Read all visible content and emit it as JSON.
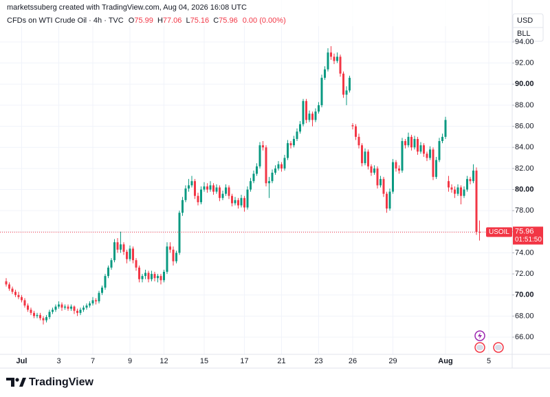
{
  "header": {
    "credit": "marketssuberg created with TradingView.com, Aug 04, 2026 16:08 UTC"
  },
  "chart_data": {
    "type": "candlestick",
    "title": "CFDs on WTI Crude Oil · 4h · TVC",
    "ohlc_labels": [
      "O",
      "H",
      "L",
      "C"
    ],
    "change_label": "0.00 (0.00%)",
    "currency": "USD",
    "unit": "BLL",
    "symbol": "USOIL",
    "countdown": "01:51:50",
    "up_color": "#089981",
    "down_color": "#f23645",
    "grid": true,
    "ylim": [
      64.37,
      97.98
    ],
    "yticks": [
      {
        "value": 66,
        "label": "66.00"
      },
      {
        "value": 68,
        "label": "68.00"
      },
      {
        "value": 70,
        "label": "70.00"
      },
      {
        "value": 72,
        "label": "72.00"
      },
      {
        "value": 74,
        "label": "74.00"
      },
      {
        "value": 76,
        "label": "76.00"
      },
      {
        "value": 78,
        "label": "78.00"
      },
      {
        "value": 80,
        "label": "80.00"
      },
      {
        "value": 82,
        "label": "82.00"
      },
      {
        "value": 84,
        "label": "84.00"
      },
      {
        "value": 86,
        "label": "86.00"
      },
      {
        "value": 88,
        "label": "88.00"
      },
      {
        "value": 90,
        "label": "90.00"
      },
      {
        "value": 92,
        "label": "92.00"
      },
      {
        "value": 94,
        "label": "94.00"
      }
    ],
    "categories": [
      null,
      null,
      null,
      null,
      null,
      "Jul",
      null,
      null,
      null,
      null,
      null,
      null,
      null,
      null,
      null,
      null,
      null,
      "3",
      null,
      null,
      null,
      null,
      null,
      null,
      null,
      null,
      null,
      null,
      "7",
      null,
      null,
      null,
      null,
      null,
      null,
      null,
      null,
      null,
      null,
      null,
      "9",
      null,
      null,
      null,
      null,
      null,
      null,
      null,
      null,
      null,
      null,
      "12",
      null,
      null,
      null,
      null,
      null,
      null,
      null,
      null,
      null,
      null,
      null,
      null,
      "15",
      null,
      null,
      null,
      null,
      null,
      null,
      null,
      null,
      null,
      null,
      null,
      null,
      "17",
      null,
      null,
      null,
      null,
      null,
      null,
      null,
      null,
      null,
      null,
      null,
      "21",
      null,
      null,
      null,
      null,
      null,
      null,
      null,
      null,
      null,
      null,
      null,
      "23",
      null,
      null,
      null,
      null,
      null,
      null,
      null,
      null,
      null,
      null,
      "26",
      null,
      null,
      null,
      null,
      null,
      null,
      null,
      null,
      null,
      null,
      null,
      null,
      "29",
      null,
      null,
      null,
      null,
      null,
      null,
      null,
      null,
      null,
      null,
      null,
      null,
      null,
      null,
      null,
      null,
      "Aug",
      null,
      null,
      null,
      null,
      null,
      null,
      null,
      null,
      null,
      null,
      null,
      null,
      null,
      "5"
    ],
    "ohlc": [
      [
        71.3,
        71.6,
        70.8,
        71.0
      ],
      [
        71.0,
        71.2,
        70.4,
        70.6
      ],
      [
        70.6,
        70.8,
        70.1,
        70.3
      ],
      [
        70.3,
        70.5,
        69.8,
        70.0
      ],
      [
        70.0,
        70.3,
        69.6,
        69.8
      ],
      [
        69.8,
        70.0,
        69.3,
        69.5
      ],
      [
        69.5,
        69.7,
        68.8,
        69.0
      ],
      [
        69.0,
        69.2,
        68.4,
        68.6
      ],
      [
        68.6,
        68.8,
        68.1,
        68.3
      ],
      [
        68.3,
        68.5,
        67.8,
        68.0
      ],
      [
        68.0,
        68.3,
        67.8,
        68.1
      ],
      [
        68.1,
        68.3,
        67.6,
        67.8
      ],
      [
        67.8,
        68.0,
        67.2,
        67.6
      ],
      [
        67.6,
        68.1,
        67.4,
        67.9
      ],
      [
        67.9,
        68.6,
        67.7,
        68.4
      ],
      [
        68.4,
        68.8,
        68.2,
        68.6
      ],
      [
        68.6,
        69.1,
        68.4,
        68.9
      ],
      [
        68.9,
        69.4,
        68.7,
        69.1
      ],
      [
        69.1,
        69.3,
        68.5,
        68.8
      ],
      [
        68.8,
        69.1,
        68.6,
        68.9
      ],
      [
        68.9,
        69.1,
        68.5,
        68.7
      ],
      [
        68.7,
        69.1,
        68.5,
        68.9
      ],
      [
        68.9,
        69.0,
        68.2,
        68.5
      ],
      [
        68.5,
        68.7,
        68.0,
        68.3
      ],
      [
        68.3,
        68.8,
        68.1,
        68.6
      ],
      [
        68.6,
        69.0,
        68.4,
        68.8
      ],
      [
        68.8,
        69.2,
        68.6,
        69.0
      ],
      [
        69.0,
        69.4,
        68.8,
        69.2
      ],
      [
        69.2,
        69.8,
        69.0,
        69.5
      ],
      [
        69.5,
        69.7,
        69.1,
        69.4
      ],
      [
        69.4,
        70.4,
        69.2,
        70.2
      ],
      [
        70.2,
        70.9,
        70.0,
        70.7
      ],
      [
        70.7,
        72.0,
        70.5,
        71.8
      ],
      [
        71.8,
        72.8,
        71.6,
        72.6
      ],
      [
        72.6,
        73.5,
        72.4,
        73.3
      ],
      [
        73.3,
        75.3,
        73.1,
        75.0
      ],
      [
        75.0,
        75.4,
        74.0,
        74.3
      ],
      [
        74.3,
        76.0,
        74.0,
        74.8
      ],
      [
        74.8,
        75.0,
        73.8,
        74.1
      ],
      [
        74.1,
        74.3,
        73.0,
        73.4
      ],
      [
        73.4,
        74.7,
        73.2,
        74.4
      ],
      [
        74.4,
        74.6,
        73.0,
        73.3
      ],
      [
        73.3,
        73.5,
        72.3,
        72.6
      ],
      [
        72.6,
        72.8,
        71.2,
        71.5
      ],
      [
        71.5,
        72.0,
        71.2,
        71.8
      ],
      [
        71.8,
        72.4,
        71.5,
        72.1
      ],
      [
        72.1,
        72.3,
        71.2,
        71.5
      ],
      [
        71.5,
        72.3,
        71.3,
        72.0
      ],
      [
        72.0,
        72.2,
        71.3,
        71.6
      ],
      [
        71.6,
        72.0,
        71.2,
        71.8
      ],
      [
        71.8,
        72.0,
        71.0,
        71.4
      ],
      [
        71.4,
        72.4,
        71.2,
        72.2
      ],
      [
        72.2,
        75.0,
        72.0,
        74.6
      ],
      [
        74.6,
        75.0,
        74.0,
        74.3
      ],
      [
        74.3,
        74.6,
        72.8,
        73.2
      ],
      [
        73.2,
        74.2,
        73.0,
        74.0
      ],
      [
        74.0,
        78.0,
        73.8,
        77.8
      ],
      [
        77.8,
        79.3,
        77.5,
        79.0
      ],
      [
        79.0,
        80.4,
        78.8,
        80.1
      ],
      [
        80.1,
        81.0,
        79.8,
        80.4
      ],
      [
        80.4,
        81.3,
        80.2,
        80.8
      ],
      [
        80.8,
        81.0,
        79.1,
        79.4
      ],
      [
        79.4,
        79.7,
        78.5,
        78.8
      ],
      [
        78.8,
        80.3,
        78.6,
        80.0
      ],
      [
        80.0,
        80.7,
        79.8,
        80.3
      ],
      [
        80.3,
        80.6,
        79.7,
        80.0
      ],
      [
        80.0,
        80.8,
        79.8,
        80.4
      ],
      [
        80.4,
        80.6,
        79.5,
        79.8
      ],
      [
        79.8,
        80.5,
        79.6,
        80.2
      ],
      [
        80.2,
        80.4,
        78.9,
        79.2
      ],
      [
        79.2,
        79.9,
        79.0,
        79.6
      ],
      [
        79.6,
        80.5,
        79.4,
        80.2
      ],
      [
        80.2,
        80.4,
        79.1,
        79.4
      ],
      [
        79.4,
        79.6,
        78.4,
        78.7
      ],
      [
        78.7,
        79.3,
        78.5,
        79.0
      ],
      [
        79.0,
        79.2,
        78.2,
        78.5
      ],
      [
        78.5,
        79.5,
        78.3,
        79.2
      ],
      [
        79.2,
        79.4,
        77.9,
        78.3
      ],
      [
        78.3,
        80.3,
        78.1,
        80.0
      ],
      [
        80.0,
        81.1,
        79.8,
        80.8
      ],
      [
        80.8,
        81.8,
        80.6,
        81.5
      ],
      [
        81.5,
        82.5,
        81.3,
        82.2
      ],
      [
        82.2,
        84.5,
        82.0,
        84.2
      ],
      [
        84.2,
        84.6,
        83.7,
        84.0
      ],
      [
        84.0,
        84.2,
        80.3,
        80.6
      ],
      [
        80.6,
        81.2,
        79.2,
        80.8
      ],
      [
        80.8,
        81.9,
        80.6,
        81.6
      ],
      [
        81.6,
        82.3,
        81.4,
        82.0
      ],
      [
        82.0,
        82.7,
        81.8,
        82.4
      ],
      [
        82.4,
        82.6,
        81.7,
        82.0
      ],
      [
        82.0,
        83.3,
        81.8,
        83.0
      ],
      [
        83.0,
        84.7,
        82.8,
        84.4
      ],
      [
        84.4,
        84.6,
        83.9,
        84.2
      ],
      [
        84.2,
        85.1,
        84.0,
        84.8
      ],
      [
        84.8,
        85.8,
        84.6,
        85.5
      ],
      [
        85.5,
        86.5,
        85.3,
        86.2
      ],
      [
        86.2,
        88.6,
        86.0,
        88.4
      ],
      [
        88.4,
        88.6,
        86.3,
        86.6
      ],
      [
        86.6,
        87.5,
        86.4,
        87.2
      ],
      [
        87.2,
        87.4,
        86.0,
        86.6
      ],
      [
        86.6,
        87.7,
        86.4,
        87.4
      ],
      [
        87.4,
        88.3,
        87.2,
        88.0
      ],
      [
        88.0,
        90.9,
        87.8,
        90.6
      ],
      [
        90.6,
        91.7,
        90.4,
        91.4
      ],
      [
        91.4,
        93.4,
        91.2,
        93.0
      ],
      [
        93.0,
        93.6,
        92.3,
        92.6
      ],
      [
        92.6,
        92.9,
        91.9,
        92.2
      ],
      [
        92.2,
        93.0,
        92.0,
        92.6
      ],
      [
        92.6,
        92.8,
        90.7,
        91.0
      ],
      [
        91.0,
        91.2,
        88.7,
        89.0
      ],
      [
        89.0,
        89.8,
        88.0,
        89.4
      ],
      [
        89.4,
        90.8,
        89.2,
        90.6
      ],
      [
        86.1,
        86.3,
        85.7,
        86.0
      ],
      [
        86.0,
        86.2,
        84.7,
        85.0
      ],
      [
        85.0,
        85.3,
        83.9,
        84.2
      ],
      [
        84.2,
        84.4,
        82.2,
        82.5
      ],
      [
        82.5,
        83.9,
        82.3,
        83.6
      ],
      [
        83.6,
        83.8,
        81.9,
        82.2
      ],
      [
        82.2,
        82.4,
        81.3,
        81.6
      ],
      [
        81.6,
        82.3,
        81.4,
        82.0
      ],
      [
        82.0,
        82.2,
        80.1,
        80.4
      ],
      [
        80.4,
        81.3,
        80.2,
        81.0
      ],
      [
        81.0,
        81.2,
        79.3,
        79.6
      ],
      [
        79.6,
        79.8,
        77.8,
        78.2
      ],
      [
        78.2,
        80.1,
        78.0,
        79.8
      ],
      [
        79.8,
        82.9,
        79.6,
        82.6
      ],
      [
        82.6,
        82.8,
        81.7,
        82.0
      ],
      [
        82.0,
        82.3,
        81.5,
        81.8
      ],
      [
        81.8,
        84.9,
        81.6,
        84.6
      ],
      [
        84.6,
        84.8,
        83.9,
        84.2
      ],
      [
        84.2,
        85.4,
        84.0,
        85.0
      ],
      [
        85.0,
        85.2,
        83.7,
        84.0
      ],
      [
        84.0,
        85.1,
        83.8,
        84.8
      ],
      [
        84.8,
        85.0,
        83.3,
        83.6
      ],
      [
        83.6,
        84.5,
        83.4,
        84.2
      ],
      [
        84.2,
        84.4,
        83.1,
        83.4
      ],
      [
        83.4,
        83.6,
        82.7,
        83.0
      ],
      [
        83.0,
        84.1,
        82.8,
        83.8
      ],
      [
        83.8,
        84.0,
        80.9,
        81.2
      ],
      [
        81.2,
        83.1,
        81.0,
        82.8
      ],
      [
        82.8,
        84.9,
        82.6,
        84.6
      ],
      [
        84.6,
        85.3,
        84.4,
        85.0
      ],
      [
        85.0,
        86.9,
        84.8,
        86.6
      ],
      [
        80.8,
        81.3,
        79.8,
        80.2
      ],
      [
        80.2,
        80.5,
        79.7,
        80.0
      ],
      [
        80.0,
        80.3,
        79.2,
        79.6
      ],
      [
        79.6,
        80.5,
        79.4,
        80.2
      ],
      [
        80.2,
        80.4,
        78.6,
        79.4
      ],
      [
        79.4,
        80.3,
        79.2,
        80.0
      ],
      [
        80.0,
        81.3,
        79.8,
        81.0
      ],
      [
        81.0,
        81.2,
        80.5,
        80.8
      ],
      [
        80.8,
        82.4,
        80.6,
        81.8
      ],
      [
        81.8,
        82.1,
        75.7,
        75.99
      ],
      [
        75.99,
        77.06,
        75.16,
        75.96
      ],
      null,
      null,
      null
    ]
  },
  "footer": {
    "brand": "TradingView"
  }
}
